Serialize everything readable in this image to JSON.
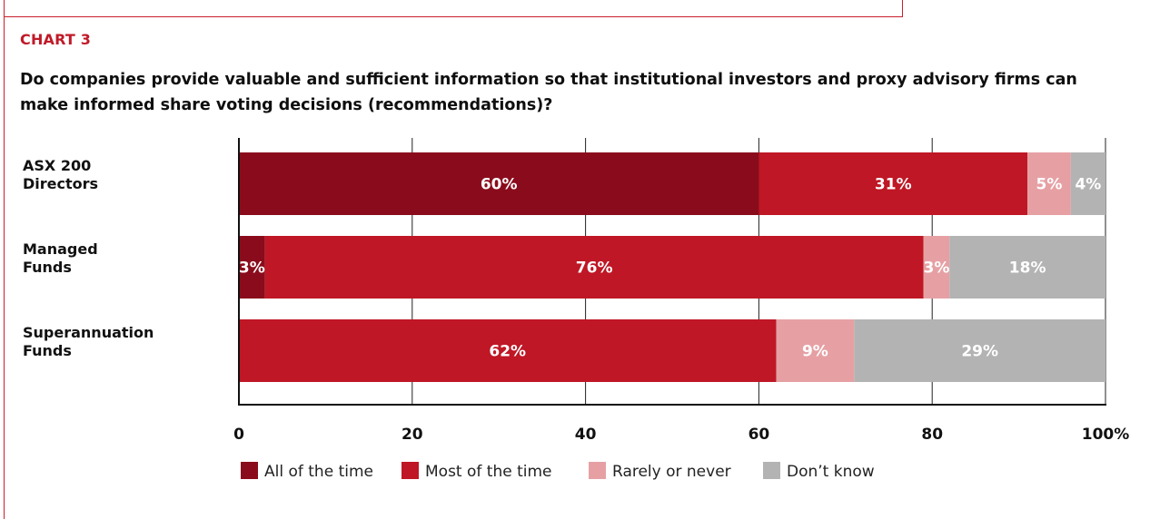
{
  "chart_label": "CHART 3",
  "chart_data": {
    "type": "bar",
    "orientation": "horizontal",
    "stacked": true,
    "title": "Do companies provide valuable and sufficient information so that institutional investors and proxy advisory firms can make informed share voting decisions (recommendations)?",
    "categories": [
      [
        "ASX 200",
        "Directors"
      ],
      [
        "Managed",
        "Funds"
      ],
      [
        "Superannuation",
        "Funds"
      ]
    ],
    "series": [
      {
        "name": "All of the time",
        "color": "#8a0c1c",
        "values": [
          60,
          3,
          0
        ],
        "labels": [
          "60%",
          "3%",
          ""
        ]
      },
      {
        "name": "Most of the time",
        "color": "#bf1725",
        "values": [
          31,
          76,
          62
        ],
        "labels": [
          "31%",
          "76%",
          "62%"
        ]
      },
      {
        "name": "Rarely or never",
        "color": "#e6a0a4",
        "values": [
          5,
          3,
          9
        ],
        "labels": [
          "5%",
          "3%",
          "9%"
        ]
      },
      {
        "name": "Don’t know",
        "color": "#b3b3b3",
        "values": [
          4,
          18,
          29
        ],
        "labels": [
          "4%",
          "18%",
          "29%"
        ]
      }
    ],
    "xlim": [
      0,
      100
    ],
    "xticks": [
      "0",
      "20",
      "40",
      "60",
      "80",
      "100%"
    ],
    "grid": true,
    "legend_position": "bottom-left"
  }
}
